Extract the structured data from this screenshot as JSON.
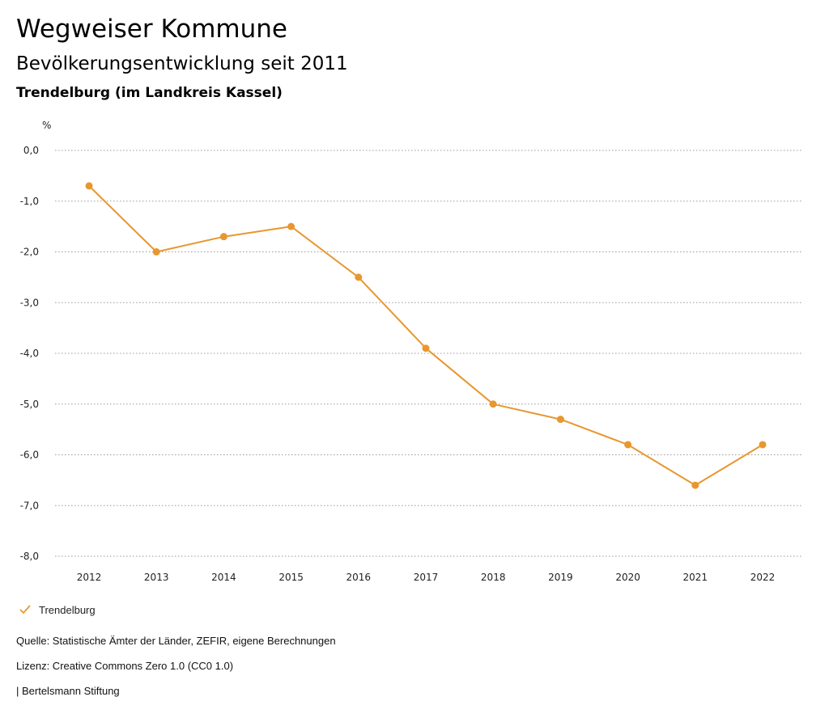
{
  "header": {
    "title": "Wegweiser Kommune",
    "subtitle": "Bevölkerungsentwicklung seit 2011",
    "region": "Trendelburg (im Landkreis Kassel)"
  },
  "chart_data": {
    "type": "line",
    "ylabel": "%",
    "xlabel": "",
    "ylim": [
      -8.0,
      0.0
    ],
    "yticks": [
      {
        "value": 0,
        "label": "0,0"
      },
      {
        "value": -1,
        "label": "-1,0"
      },
      {
        "value": -2,
        "label": "-2,0"
      },
      {
        "value": -3,
        "label": "-3,0"
      },
      {
        "value": -4,
        "label": "-4,0"
      },
      {
        "value": -5,
        "label": "-5,0"
      },
      {
        "value": -6,
        "label": "-6,0"
      },
      {
        "value": -7,
        "label": "-7,0"
      },
      {
        "value": -8,
        "label": "-8,0"
      }
    ],
    "categories": [
      "2012",
      "2013",
      "2014",
      "2015",
      "2016",
      "2017",
      "2018",
      "2019",
      "2020",
      "2021",
      "2022"
    ],
    "series": [
      {
        "name": "Trendelburg",
        "color": "#e8972f",
        "values": [
          -0.7,
          -2.0,
          -1.7,
          -1.5,
          -2.5,
          -3.9,
          -5.0,
          -5.3,
          -5.8,
          -6.6,
          -5.8
        ]
      }
    ],
    "grid": true,
    "legend": "bottom-left"
  },
  "legend": {
    "label": "Trendelburg",
    "icon": "check-icon"
  },
  "footer": {
    "source": "Quelle: Statistische Ämter der Länder, ZEFIR, eigene Berechnungen",
    "license": "Lizenz: Creative Commons Zero 1.0 (CC0 1.0)",
    "publisher": "| Bertelsmann Stiftung"
  }
}
